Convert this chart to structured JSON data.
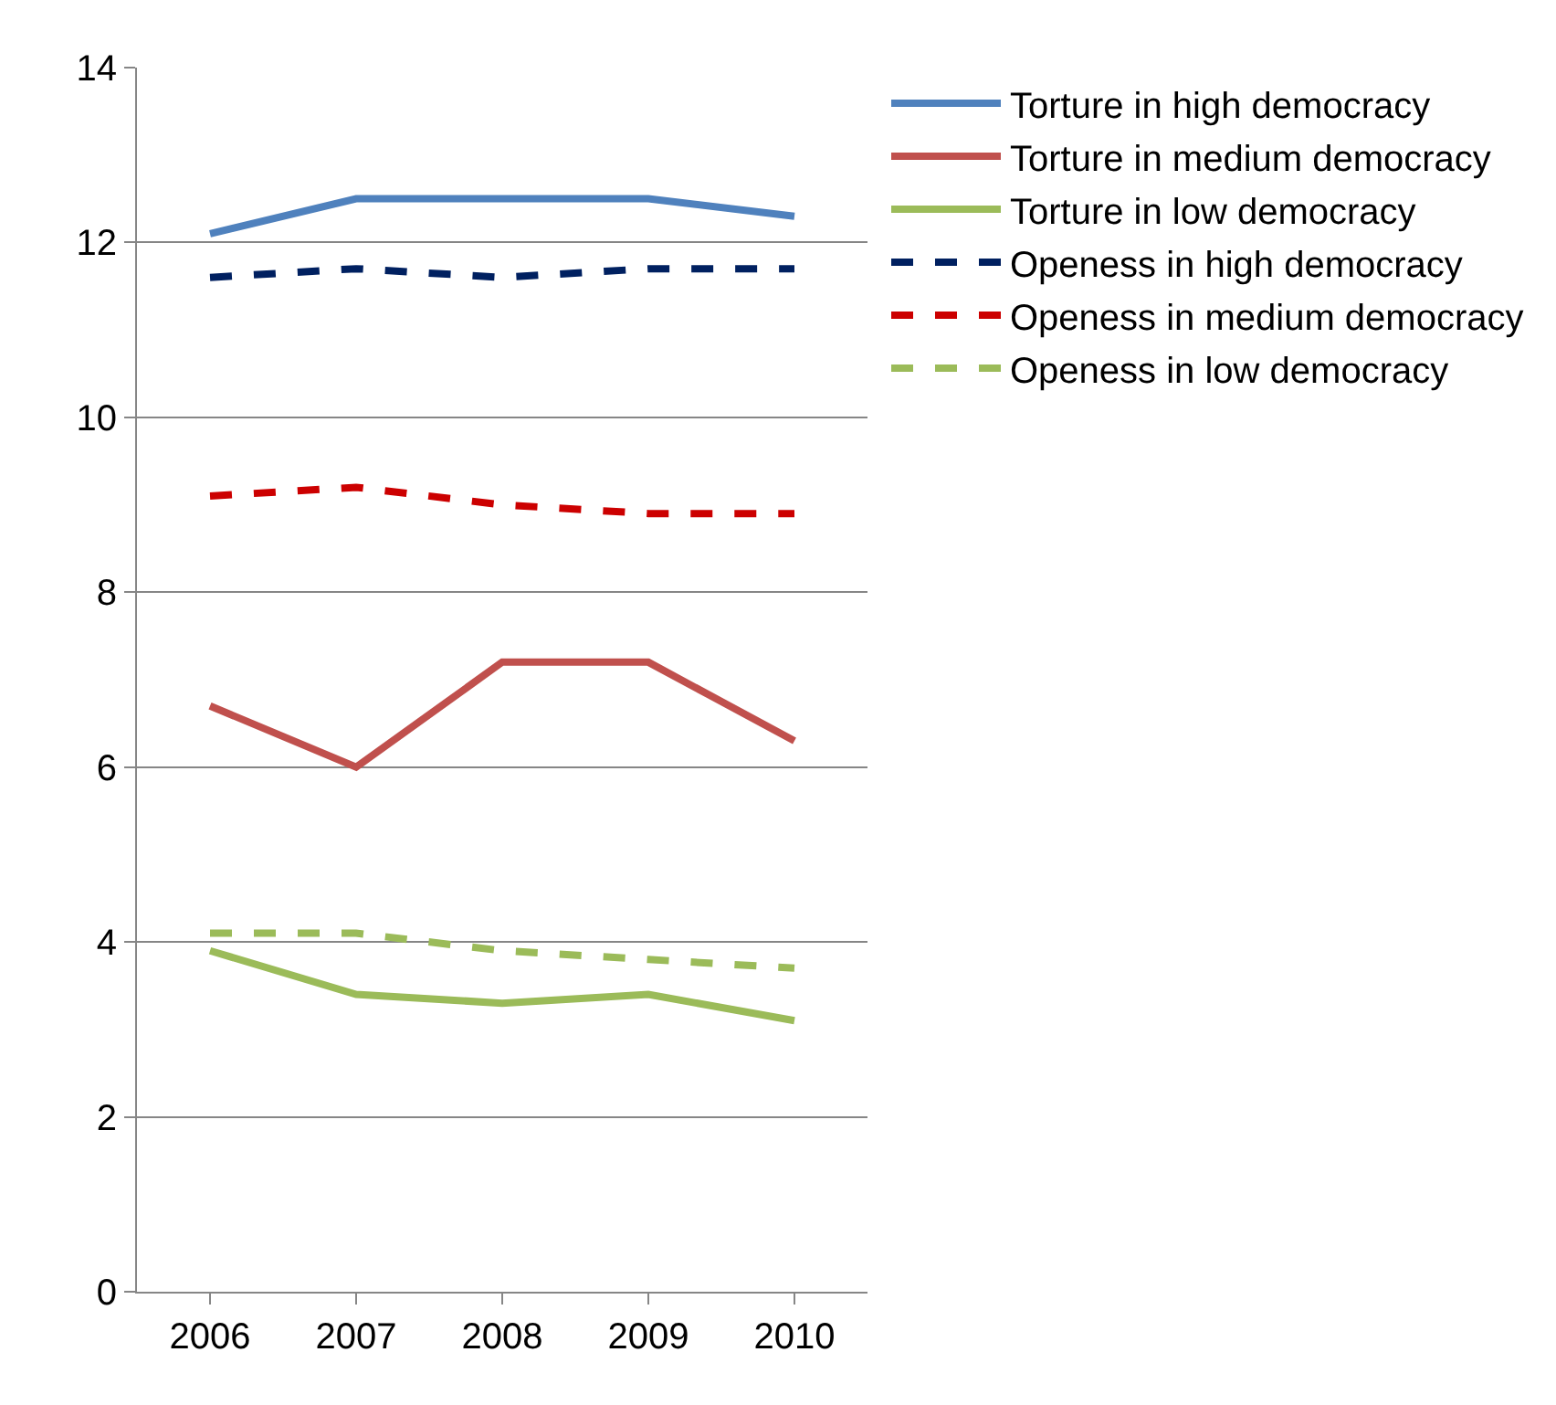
{
  "chart_data": {
    "type": "line",
    "categories": [
      "2006",
      "2007",
      "2008",
      "2009",
      "2010"
    ],
    "series": [
      {
        "name": "Torture in high democracy",
        "color": "#4f81bd",
        "line_style": "solid",
        "values": [
          12.1,
          12.5,
          12.5,
          12.5,
          12.3
        ]
      },
      {
        "name": "Torture in medium democracy",
        "color": "#c0504d",
        "line_style": "solid",
        "values": [
          6.7,
          6.0,
          7.2,
          7.2,
          6.3
        ]
      },
      {
        "name": "Torture in low democracy",
        "color": "#9bbb59",
        "line_style": "solid",
        "values": [
          3.9,
          3.4,
          3.3,
          3.4,
          3.1
        ]
      },
      {
        "name": "Openess in high democracy",
        "color": "#002060",
        "line_style": "dashed",
        "values": [
          11.6,
          11.7,
          11.6,
          11.7,
          11.7
        ]
      },
      {
        "name": "Openess in medium democracy",
        "color": "#cc0000",
        "line_style": "dashed",
        "values": [
          9.1,
          9.2,
          9.0,
          8.9,
          8.9
        ]
      },
      {
        "name": "Openess in low democracy",
        "color": "#9bbb59",
        "line_style": "dashed",
        "values": [
          4.1,
          4.1,
          3.9,
          3.8,
          3.7
        ]
      }
    ],
    "ylim": [
      0,
      14
    ],
    "yticks": [
      0,
      2,
      4,
      6,
      8,
      10,
      12,
      14
    ],
    "grid": "y",
    "legend": "right",
    "marker": "none"
  }
}
